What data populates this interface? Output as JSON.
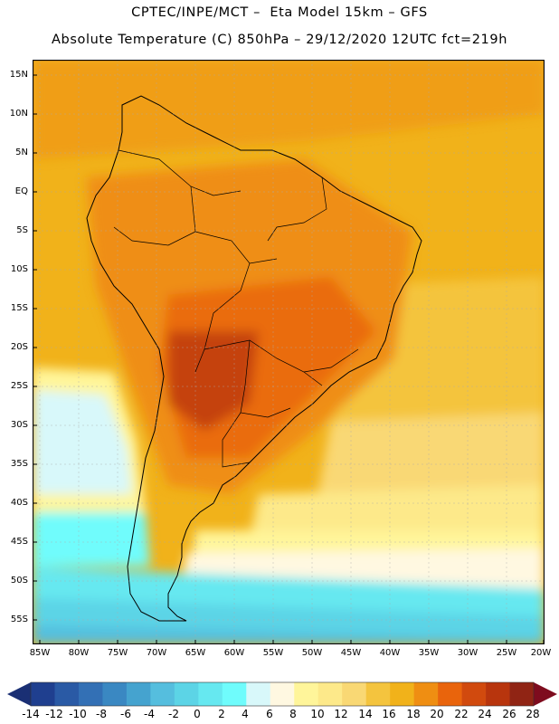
{
  "header": {
    "title_line1": "CPTEC/INPE/MCT –  Eta Model 15km – GFS",
    "title_line2": "Absolute Temperature (C) 850hPa – 29/12/2020 12UTC fct=219h"
  },
  "map": {
    "lat_labels": [
      "15N",
      "10N",
      "5N",
      "EQ",
      "5S",
      "10S",
      "15S",
      "20S",
      "25S",
      "30S",
      "35S",
      "40S",
      "45S",
      "50S",
      "55S"
    ],
    "lon_labels": [
      "85W",
      "80W",
      "75W",
      "70W",
      "65W",
      "60W",
      "55W",
      "50W",
      "45W",
      "40W",
      "35W",
      "30W",
      "25W",
      "20W"
    ],
    "lat_range": [
      17,
      -58
    ],
    "lon_range": [
      -86,
      -20
    ]
  },
  "colorbar": {
    "labels": [
      "-14",
      "-12",
      "-10",
      "-8",
      "-6",
      "-4",
      "-2",
      "0",
      "2",
      "4",
      "6",
      "8",
      "10",
      "12",
      "14",
      "16",
      "18",
      "20",
      "22",
      "24",
      "26",
      "28"
    ],
    "colors": [
      "#1f3f8f",
      "#2a5aa5",
      "#3370b5",
      "#3a88c2",
      "#45a3cf",
      "#55bede",
      "#5cd4e6",
      "#66e8f0",
      "#6ffcfc",
      "#d8f8fa",
      "#fff8e1",
      "#fff59a",
      "#fde98a",
      "#f9d874",
      "#f4c43e",
      "#f1b21a",
      "#ef8e12",
      "#e9640c",
      "#d14a0e",
      "#b8350d",
      "#902414"
    ],
    "low_color": "#1a2f74",
    "high_color": "#7e0c1e"
  }
}
